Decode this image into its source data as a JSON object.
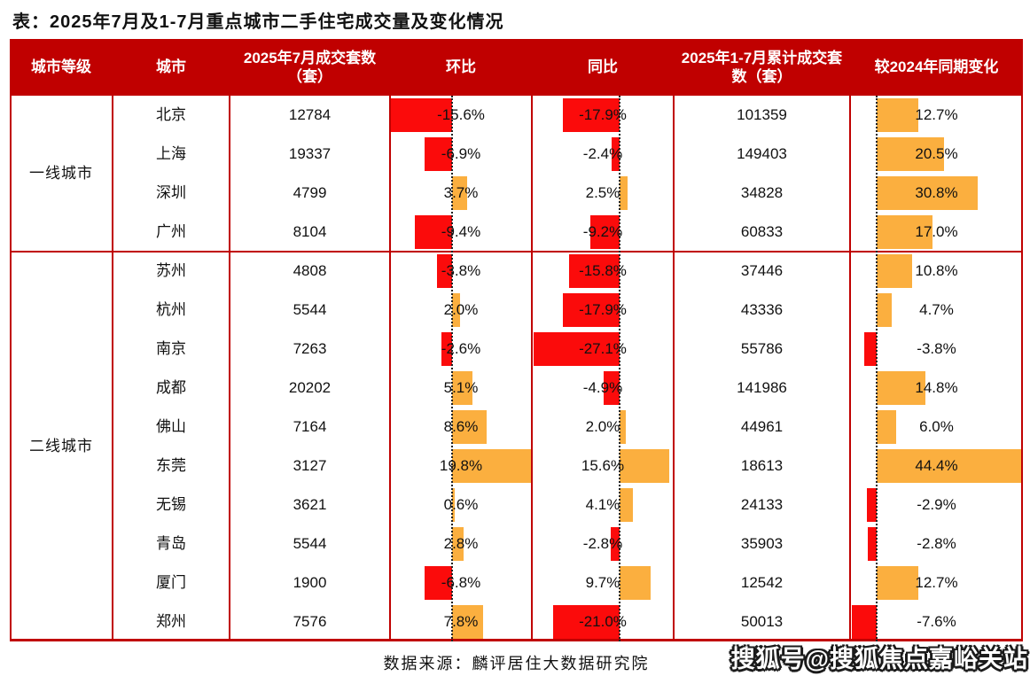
{
  "title": "表：2025年7月及1-7月重点城市二手住宅成交量及变化情况",
  "columns": [
    "城市等级",
    "城市",
    "2025年7月成交套数（套）",
    "环比",
    "同比",
    "2025年1-7月累计成交套数（套）",
    "较2024年同期变化"
  ],
  "tiers": [
    {
      "label": "一线城市",
      "rows": [
        {
          "city": "北京",
          "july": "12784",
          "mom": "-15.6%",
          "yoy": "-17.9%",
          "cum": "101359",
          "vs2024": "12.7%"
        },
        {
          "city": "上海",
          "july": "19337",
          "mom": "-6.9%",
          "yoy": "-2.4%",
          "cum": "149403",
          "vs2024": "20.5%"
        },
        {
          "city": "深圳",
          "july": "4799",
          "mom": "3.7%",
          "yoy": "2.5%",
          "cum": "34828",
          "vs2024": "30.8%"
        },
        {
          "city": "广州",
          "july": "8104",
          "mom": "-9.4%",
          "yoy": "-9.2%",
          "cum": "60833",
          "vs2024": "17.0%"
        }
      ]
    },
    {
      "label": "二线城市",
      "rows": [
        {
          "city": "苏州",
          "july": "4808",
          "mom": "-3.8%",
          "yoy": "-15.8%",
          "cum": "37446",
          "vs2024": "10.8%"
        },
        {
          "city": "杭州",
          "july": "5544",
          "mom": "2.0%",
          "yoy": "-17.9%",
          "cum": "43336",
          "vs2024": "4.7%"
        },
        {
          "city": "南京",
          "july": "7263",
          "mom": "-2.6%",
          "yoy": "-27.1%",
          "cum": "55786",
          "vs2024": "-3.8%"
        },
        {
          "city": "成都",
          "july": "20202",
          "mom": "5.1%",
          "yoy": "-4.9%",
          "cum": "141986",
          "vs2024": "14.8%"
        },
        {
          "city": "佛山",
          "july": "7164",
          "mom": "8.6%",
          "yoy": "2.0%",
          "cum": "44961",
          "vs2024": "6.0%"
        },
        {
          "city": "东莞",
          "july": "3127",
          "mom": "19.8%",
          "yoy": "15.6%",
          "cum": "18613",
          "vs2024": "44.4%"
        },
        {
          "city": "无锡",
          "july": "3621",
          "mom": "0.6%",
          "yoy": "4.1%",
          "cum": "24133",
          "vs2024": "-2.9%"
        },
        {
          "city": "青岛",
          "july": "5544",
          "mom": "2.8%",
          "yoy": "-2.8%",
          "cum": "35903",
          "vs2024": "-2.8%"
        },
        {
          "city": "厦门",
          "july": "1900",
          "mom": "-6.8%",
          "yoy": "9.7%",
          "cum": "12542",
          "vs2024": "12.7%"
        },
        {
          "city": "郑州",
          "july": "7576",
          "mom": "7.8%",
          "yoy": "-21.0%",
          "cum": "50013",
          "vs2024": "-7.6%"
        }
      ]
    }
  ],
  "footer": {
    "source": "数据来源：麟评居住大数据研究院"
  },
  "watermark": "搜狐号@搜狐焦点嘉峪关站",
  "colors": {
    "header_bg": "#C00000",
    "border": "#C00000",
    "bar_negative": "#FB0B0B",
    "bar_positive": "#FBAF3F"
  },
  "chart_data": {
    "type": "table",
    "title": "表：2025年7月及1-7月重点城市二手住宅成交量及变化情况",
    "columns": [
      "城市等级",
      "城市",
      "2025年7月成交套数（套）",
      "环比(%)",
      "同比(%)",
      "2025年1-7月累计成交套数（套）",
      "较2024年同期变化(%)"
    ],
    "rows": [
      [
        "一线城市",
        "北京",
        12784,
        -15.6,
        -17.9,
        101359,
        12.7
      ],
      [
        "一线城市",
        "上海",
        19337,
        -6.9,
        -2.4,
        149403,
        20.5
      ],
      [
        "一线城市",
        "深圳",
        4799,
        3.7,
        2.5,
        34828,
        30.8
      ],
      [
        "一线城市",
        "广州",
        8104,
        -9.4,
        -9.2,
        60833,
        17.0
      ],
      [
        "二线城市",
        "苏州",
        4808,
        -3.8,
        -15.8,
        37446,
        10.8
      ],
      [
        "二线城市",
        "杭州",
        5544,
        2.0,
        -17.9,
        43336,
        4.7
      ],
      [
        "二线城市",
        "南京",
        7263,
        -2.6,
        -27.1,
        55786,
        -3.8
      ],
      [
        "二线城市",
        "成都",
        20202,
        5.1,
        -4.9,
        141986,
        14.8
      ],
      [
        "二线城市",
        "佛山",
        7164,
        8.6,
        2.0,
        44961,
        6.0
      ],
      [
        "二线城市",
        "东莞",
        3127,
        19.8,
        15.6,
        18613,
        44.4
      ],
      [
        "二线城市",
        "无锡",
        3621,
        0.6,
        4.1,
        24133,
        -2.9
      ],
      [
        "二线城市",
        "青岛",
        5544,
        2.8,
        -2.8,
        35903,
        -2.8
      ],
      [
        "二线城市",
        "厦门",
        1900,
        -6.8,
        9.7,
        12542,
        12.7
      ],
      [
        "二线城市",
        "郑州",
        7576,
        7.8,
        -21.0,
        50013,
        -7.6
      ]
    ],
    "notes": "环比、同比、较2024年同期变化三列含内嵌条形图：负值为红色向左延伸，正值为橙色向右延伸",
    "source": "数据来源：麟评居住大数据研究院"
  }
}
